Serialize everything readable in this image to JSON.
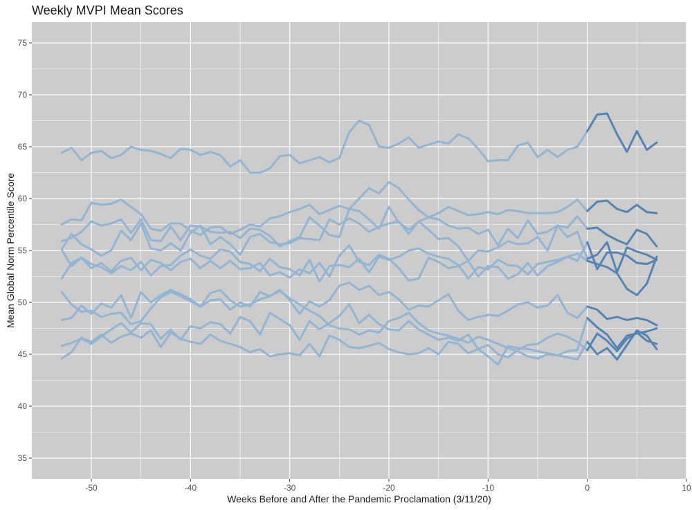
{
  "chart_data": {
    "type": "line",
    "title": "Weekly MVPI Mean Scores",
    "xlabel": "Weeks Before and After the Pandemic Proclamation (3/11/20)",
    "ylabel": "Mean Global Norm Percentile Score",
    "xlim": [
      -56,
      10
    ],
    "ylim": [
      33,
      77
    ],
    "xticks": [
      -50,
      -40,
      -30,
      -20,
      -10,
      0,
      10
    ],
    "yticks": [
      35,
      40,
      45,
      50,
      55,
      60,
      65,
      70,
      75
    ],
    "grid": true,
    "legend": "none",
    "colors": {
      "panel": "#cccccc",
      "grid": "#ffffff",
      "before": "#93b4d3",
      "after": "#5584b2"
    },
    "periods": [
      {
        "start": -53,
        "end": 0,
        "color": "before"
      },
      {
        "start": 0,
        "end": 7,
        "color": "after"
      }
    ],
    "series": [
      {
        "values": [
          64.4,
          64.9,
          63.7,
          64.4,
          64.6,
          63.9,
          64.2,
          65.0,
          64.7,
          64.6,
          64.3,
          63.9,
          64.8,
          64.7,
          64.2,
          64.5,
          64.2,
          63.1,
          63.7,
          62.5,
          62.5,
          62.9,
          64.1,
          64.2,
          63.4,
          63.7,
          64.0,
          63.5,
          63.9,
          66.4,
          67.5,
          67.1,
          65.0,
          64.9,
          65.3,
          65.9,
          64.9,
          65.2,
          65.5,
          65.3,
          66.2,
          65.8,
          64.8,
          63.6,
          63.7,
          63.7,
          65.1,
          65.4,
          64.0,
          64.7,
          64.0,
          64.7,
          65.0,
          66.5,
          68.1,
          68.2,
          66.2,
          64.5,
          66.5,
          64.7,
          65.4
        ]
      },
      {
        "values": [
          57.5,
          58.0,
          57.9,
          59.6,
          59.4,
          59.5,
          59.9,
          59.2,
          58.5,
          57.1,
          56.9,
          57.6,
          57.6,
          56.9,
          56.5,
          57.2,
          57.3,
          56.6,
          57.0,
          57.5,
          57.3,
          58.1,
          58.3,
          58.7,
          59.0,
          59.4,
          58.5,
          58.9,
          59.3,
          59.0,
          60.0,
          61.0,
          60.5,
          61.6,
          61.0,
          59.9,
          58.9,
          58.2,
          58.6,
          59.2,
          58.8,
          58.4,
          58.5,
          58.7,
          58.5,
          58.9,
          58.8,
          58.6,
          58.6,
          58.6,
          58.7,
          59.2,
          59.9,
          58.8,
          59.7,
          59.8,
          59.0,
          58.7,
          59.4,
          58.7,
          58.6
        ]
      },
      {
        "values": [
          55.9,
          56.2,
          56.8,
          57.8,
          57.4,
          57.6,
          58.0,
          56.7,
          58.0,
          56.0,
          55.9,
          57.3,
          56.0,
          57.4,
          57.3,
          56.8,
          56.7,
          56.8,
          56.2,
          57.1,
          57.0,
          56.4,
          55.4,
          55.9,
          56.3,
          58.2,
          57.4,
          56.5,
          56.3,
          59.0,
          58.8,
          58.0,
          57.1,
          59.2,
          57.7,
          57.0,
          57.8,
          58.2,
          58.0,
          57.4,
          57.1,
          57.2,
          56.6,
          57.0,
          55.5,
          57.1,
          56.2,
          57.9,
          56.6,
          56.8,
          57.4,
          57.2,
          58.3,
          57.1,
          57.2,
          56.5,
          56.0,
          55.6,
          57.0,
          56.6,
          55.4
        ]
      },
      {
        "values": [
          55.1,
          56.6,
          55.6,
          55.1,
          54.5,
          55.0,
          56.9,
          56.0,
          57.6,
          55.2,
          55.0,
          55.7,
          55.0,
          56.7,
          57.4,
          55.6,
          56.3,
          55.6,
          54.6,
          56.3,
          56.6,
          55.8,
          55.6,
          55.7,
          56.2,
          56.1,
          56.0,
          58.0,
          57.5,
          58.1,
          57.6,
          56.8,
          57.3,
          57.6,
          57.8,
          56.6,
          57.8,
          57.0,
          56.1,
          56.2,
          55.4,
          54.0,
          55.0,
          54.9,
          55.3,
          55.9,
          55.6,
          55.7,
          56.3,
          55.0,
          57.4,
          56.3,
          56.8,
          54.2,
          54.6,
          55.8,
          52.9,
          55.3,
          54.9,
          54.6,
          54.1
        ]
      },
      {
        "values": [
          52.3,
          53.8,
          54.3,
          53.3,
          53.8,
          53.0,
          54.0,
          54.3,
          53.1,
          54.1,
          53.8,
          53.1,
          53.9,
          54.2,
          53.3,
          54.0,
          53.3,
          54.0,
          53.2,
          53.3,
          53.8,
          52.6,
          52.9,
          52.4,
          53.2,
          52.8,
          53.8,
          52.5,
          54.5,
          55.5,
          53.9,
          53.6,
          54.6,
          54.2,
          53.3,
          52.1,
          52.3,
          54.3,
          53.9,
          53.3,
          53.5,
          54.0,
          52.5,
          53.5,
          53.4,
          52.3,
          52.7,
          53.8,
          52.6,
          53.5,
          53.9,
          54.4,
          54.7,
          54.0,
          53.7,
          53.4,
          52.8,
          51.3,
          50.7,
          51.8,
          54.4
        ]
      },
      {
        "values": [
          55.1,
          53.5,
          54.3,
          53.7,
          53.4,
          52.8,
          53.5,
          53.1,
          53.9,
          52.6,
          53.5,
          53.6,
          54.5,
          55.1,
          54.5,
          54.2,
          55.1,
          54.9,
          53.9,
          53.7,
          53.0,
          54.2,
          53.4,
          53.2,
          52.6,
          54.1,
          52.0,
          53.5,
          53.6,
          53.4,
          54.2,
          52.9,
          54.4,
          54.1,
          54.4,
          55.0,
          55.2,
          54.7,
          54.4,
          54.2,
          53.6,
          52.3,
          53.4,
          53.2,
          54.1,
          53.6,
          53.5,
          52.7,
          53.7,
          53.9,
          54.1,
          54.4,
          54.0,
          55.8,
          53.2,
          54.8,
          54.8,
          54.5,
          53.8,
          53.7,
          54.1
        ]
      },
      {
        "values": [
          48.3,
          48.5,
          49.7,
          48.9,
          49.9,
          49.5,
          50.7,
          48.5,
          51.0,
          50.0,
          50.7,
          51.2,
          50.8,
          50.3,
          49.6,
          50.9,
          51.2,
          50.2,
          49.6,
          49.8,
          50.3,
          50.6,
          51.2,
          50.2,
          48.9,
          50.1,
          49.6,
          50.2,
          51.6,
          51.9,
          51.2,
          51.6,
          50.7,
          51.0,
          50.3,
          49.3,
          49.7,
          49.6,
          50.2,
          50.8,
          49.2,
          48.3,
          48.6,
          48.8,
          48.7,
          49.2,
          49.8,
          50.0,
          49.5,
          49.7,
          50.7,
          49.0,
          48.5,
          49.6,
          49.3,
          48.4,
          48.6,
          48.3,
          48.5,
          48.3,
          47.8
        ]
      },
      {
        "values": [
          51.0,
          49.8,
          49.1,
          49.2,
          48.6,
          48.9,
          49.0,
          47.9,
          48.2,
          49.4,
          50.5,
          51.0,
          50.6,
          50.1,
          49.6,
          50.2,
          50.3,
          49.3,
          50.0,
          49.6,
          51.0,
          50.6,
          51.1,
          50.4,
          49.8,
          49.2,
          48.7,
          47.8,
          47.5,
          47.4,
          46.9,
          47.3,
          47.1,
          48.2,
          48.5,
          49.0,
          48.0,
          47.3,
          47.0,
          46.8,
          46.5,
          46.1,
          46.7,
          46.4,
          46.0,
          45.6,
          45.3,
          44.8,
          44.6,
          45.0,
          44.9,
          45.3,
          45.4,
          48.5,
          47.6,
          46.9,
          45.6,
          46.8,
          47.0,
          47.2,
          47.5
        ]
      },
      {
        "values": [
          45.8,
          46.1,
          46.5,
          46.0,
          46.7,
          47.4,
          48.0,
          47.1,
          48.0,
          47.9,
          46.5,
          47.4,
          46.4,
          47.7,
          47.5,
          48.1,
          47.9,
          47.0,
          48.6,
          48.2,
          46.9,
          49.0,
          48.4,
          47.8,
          46.4,
          48.2,
          47.4,
          48.0,
          48.7,
          49.8,
          48.0,
          48.8,
          47.9,
          47.4,
          47.3,
          48.2,
          47.4,
          46.9,
          46.4,
          46.6,
          46.3,
          46.9,
          45.5,
          45.9,
          45.0,
          44.7,
          45.4,
          45.9,
          46.0,
          46.6,
          47.0,
          46.7,
          46.2,
          45.4,
          47.0,
          46.3,
          45.3,
          46.5,
          47.1,
          46.3,
          46.0
        ]
      },
      {
        "values": [
          44.6,
          45.2,
          46.6,
          46.2,
          46.9,
          46.1,
          46.7,
          47.0,
          46.6,
          47.3,
          45.7,
          47.1,
          46.5,
          46.2,
          46.0,
          46.9,
          46.3,
          46.0,
          45.7,
          45.2,
          45.5,
          44.8,
          45.0,
          45.1,
          44.9,
          46.0,
          44.8,
          46.8,
          46.4,
          45.7,
          45.6,
          45.8,
          46.1,
          45.5,
          45.2,
          45.0,
          45.1,
          45.6,
          45.0,
          46.2,
          46.0,
          45.1,
          45.5,
          44.8,
          44.0,
          45.8,
          45.6,
          45.5,
          45.3,
          45.1,
          44.9,
          44.7,
          44.5,
          46.2,
          45.0,
          45.6,
          44.5,
          45.9,
          47.3,
          46.8,
          45.5
        ]
      }
    ]
  }
}
